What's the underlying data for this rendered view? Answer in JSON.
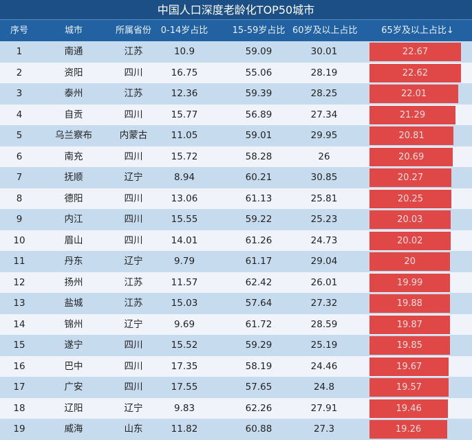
{
  "title": "中国人口深度老龄化TOP50城市",
  "headers": [
    "序号",
    "城市",
    "所属省份",
    "0-14岁占比",
    "15-59岁占比",
    "60岁及以上占比",
    "65岁及以上占比↓"
  ],
  "colors": {
    "title_bg": "#1b4f86",
    "header_bg": "#2262a2",
    "bar": "#e04848",
    "row_odd": "#c7dbef",
    "row_even": "#f0f4fa"
  },
  "rows": [
    [
      "1",
      "南通",
      "江苏",
      "10.9",
      "59.09",
      "30.01",
      "22.67"
    ],
    [
      "2",
      "资阳",
      "四川",
      "16.75",
      "55.06",
      "28.19",
      "22.62"
    ],
    [
      "3",
      "泰州",
      "江苏",
      "12.36",
      "59.39",
      "28.25",
      "22.01"
    ],
    [
      "4",
      "自贡",
      "四川",
      "15.77",
      "56.89",
      "27.34",
      "21.29"
    ],
    [
      "5",
      "乌兰察布",
      "内蒙古",
      "11.05",
      "59.01",
      "29.95",
      "20.81"
    ],
    [
      "6",
      "南充",
      "四川",
      "15.72",
      "58.28",
      "26",
      "20.69"
    ],
    [
      "7",
      "抚顺",
      "辽宁",
      "8.94",
      "60.21",
      "30.85",
      "20.27"
    ],
    [
      "8",
      "德阳",
      "四川",
      "13.06",
      "61.13",
      "25.81",
      "20.25"
    ],
    [
      "9",
      "内江",
      "四川",
      "15.55",
      "59.22",
      "25.23",
      "20.03"
    ],
    [
      "10",
      "眉山",
      "四川",
      "14.01",
      "61.26",
      "24.73",
      "20.02"
    ],
    [
      "11",
      "丹东",
      "辽宁",
      "9.79",
      "61.17",
      "29.04",
      "20"
    ],
    [
      "12",
      "扬州",
      "江苏",
      "11.57",
      "62.42",
      "26.01",
      "19.99"
    ],
    [
      "13",
      "盐城",
      "江苏",
      "15.03",
      "57.64",
      "27.32",
      "19.88"
    ],
    [
      "14",
      "锦州",
      "辽宁",
      "9.69",
      "61.72",
      "28.59",
      "19.87"
    ],
    [
      "15",
      "遂宁",
      "四川",
      "15.52",
      "59.29",
      "25.19",
      "19.85"
    ],
    [
      "16",
      "巴中",
      "四川",
      "17.35",
      "58.19",
      "24.46",
      "19.67"
    ],
    [
      "17",
      "广安",
      "四川",
      "17.55",
      "57.65",
      "24.8",
      "19.57"
    ],
    [
      "18",
      "辽阳",
      "辽宁",
      "9.83",
      "62.26",
      "27.91",
      "19.46"
    ],
    [
      "19",
      "威海",
      "山东",
      "11.82",
      "60.88",
      "27.3",
      "19.26"
    ]
  ]
}
